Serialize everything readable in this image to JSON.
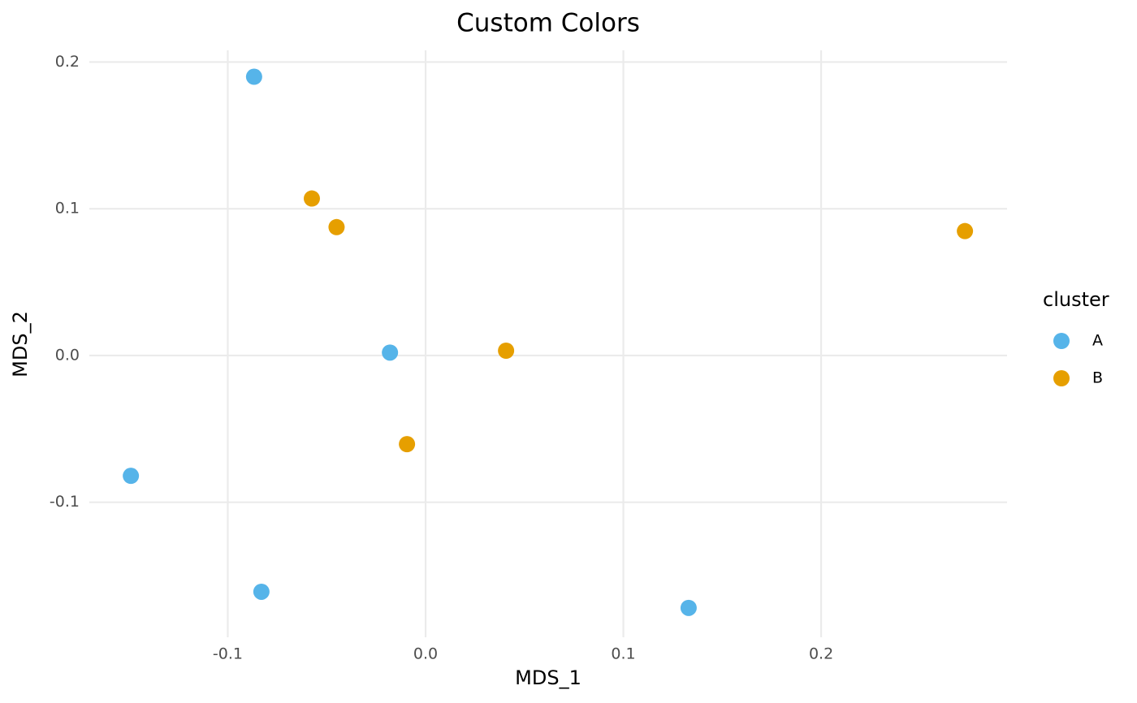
{
  "chart_data": {
    "type": "scatter",
    "title": "Custom Colors",
    "x_label": "MDS_1",
    "y_label": "MDS_2",
    "legend_title": "cluster",
    "legend": "right",
    "grid": true,
    "xlim": [
      -0.17,
      0.294
    ],
    "ylim": [
      -0.192,
      0.208
    ],
    "xticks": [
      -0.1,
      {
        "value": 0,
        "label": "0.0"
      },
      0.1,
      0.2
    ],
    "yticks": [
      -0.1,
      {
        "value": 0,
        "label": "0.0"
      },
      0.1,
      0.2
    ],
    "series": [
      {
        "name": "A",
        "color": "#56B4E9",
        "x": [
          -0.0867,
          -0.149,
          -0.018,
          -0.083,
          0.133
        ],
        "values": [
          0.19,
          -0.082,
          0.002,
          -0.161,
          -0.172
        ]
      },
      {
        "name": "B",
        "color": "#E69F00",
        "x": [
          -0.0575,
          -0.045,
          0.0407,
          -0.0094,
          0.2727
        ],
        "values": [
          0.107,
          0.0875,
          0.0033,
          -0.0604,
          0.0848
        ]
      }
    ]
  }
}
